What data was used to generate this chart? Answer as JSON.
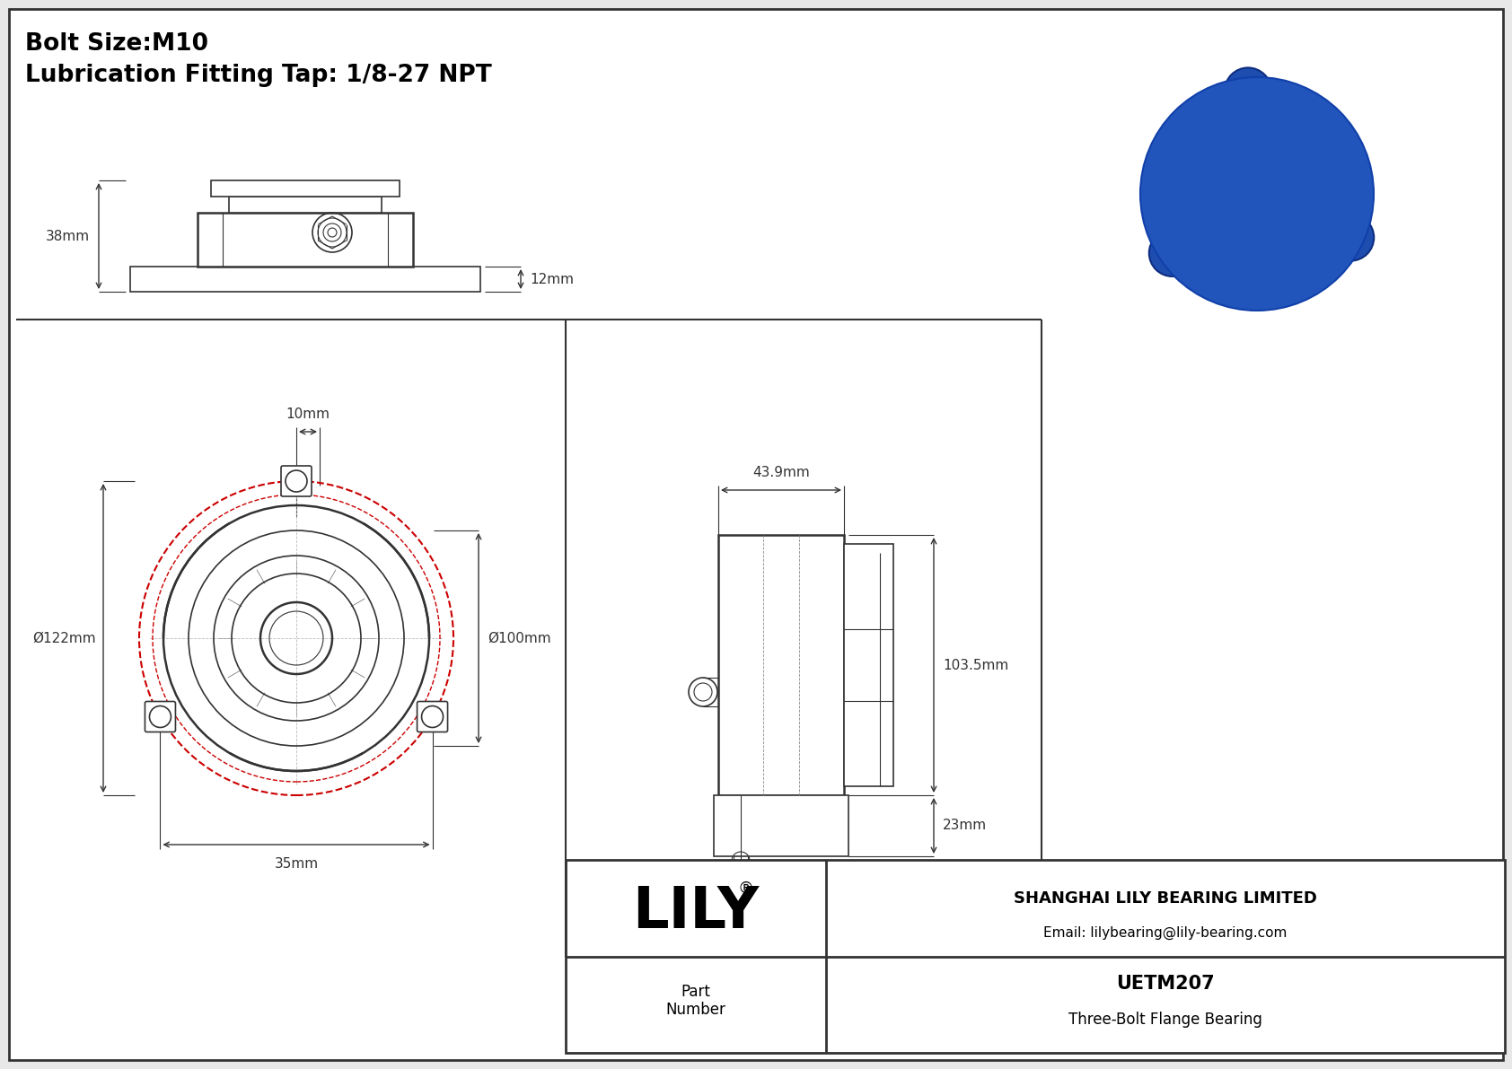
{
  "bg_color": "#e8e8e8",
  "line_color": "#333333",
  "red_color": "#cc0000",
  "title_line1": "Bolt Size:M10",
  "title_line2": "Lubrication Fitting Tap: 1/8-27 NPT",
  "dim_10mm": "10mm",
  "dim_35mm": "35mm",
  "dim_122mm": "Ø122mm",
  "dim_100mm": "Ø100mm",
  "dim_43_9mm": "43.9mm",
  "dim_103_5mm": "103.5mm",
  "dim_23mm": "23mm",
  "dim_38mm": "38mm",
  "dim_12mm": "12mm",
  "company": "SHANGHAI LILY BEARING LIMITED",
  "email": "Email: lilybearing@lily-bearing.com",
  "part_label": "Part\nNumber",
  "part_number": "UETM207",
  "part_desc": "Three-Bolt Flange Bearing",
  "logo_text": "LILY",
  "logo_sup": "®"
}
